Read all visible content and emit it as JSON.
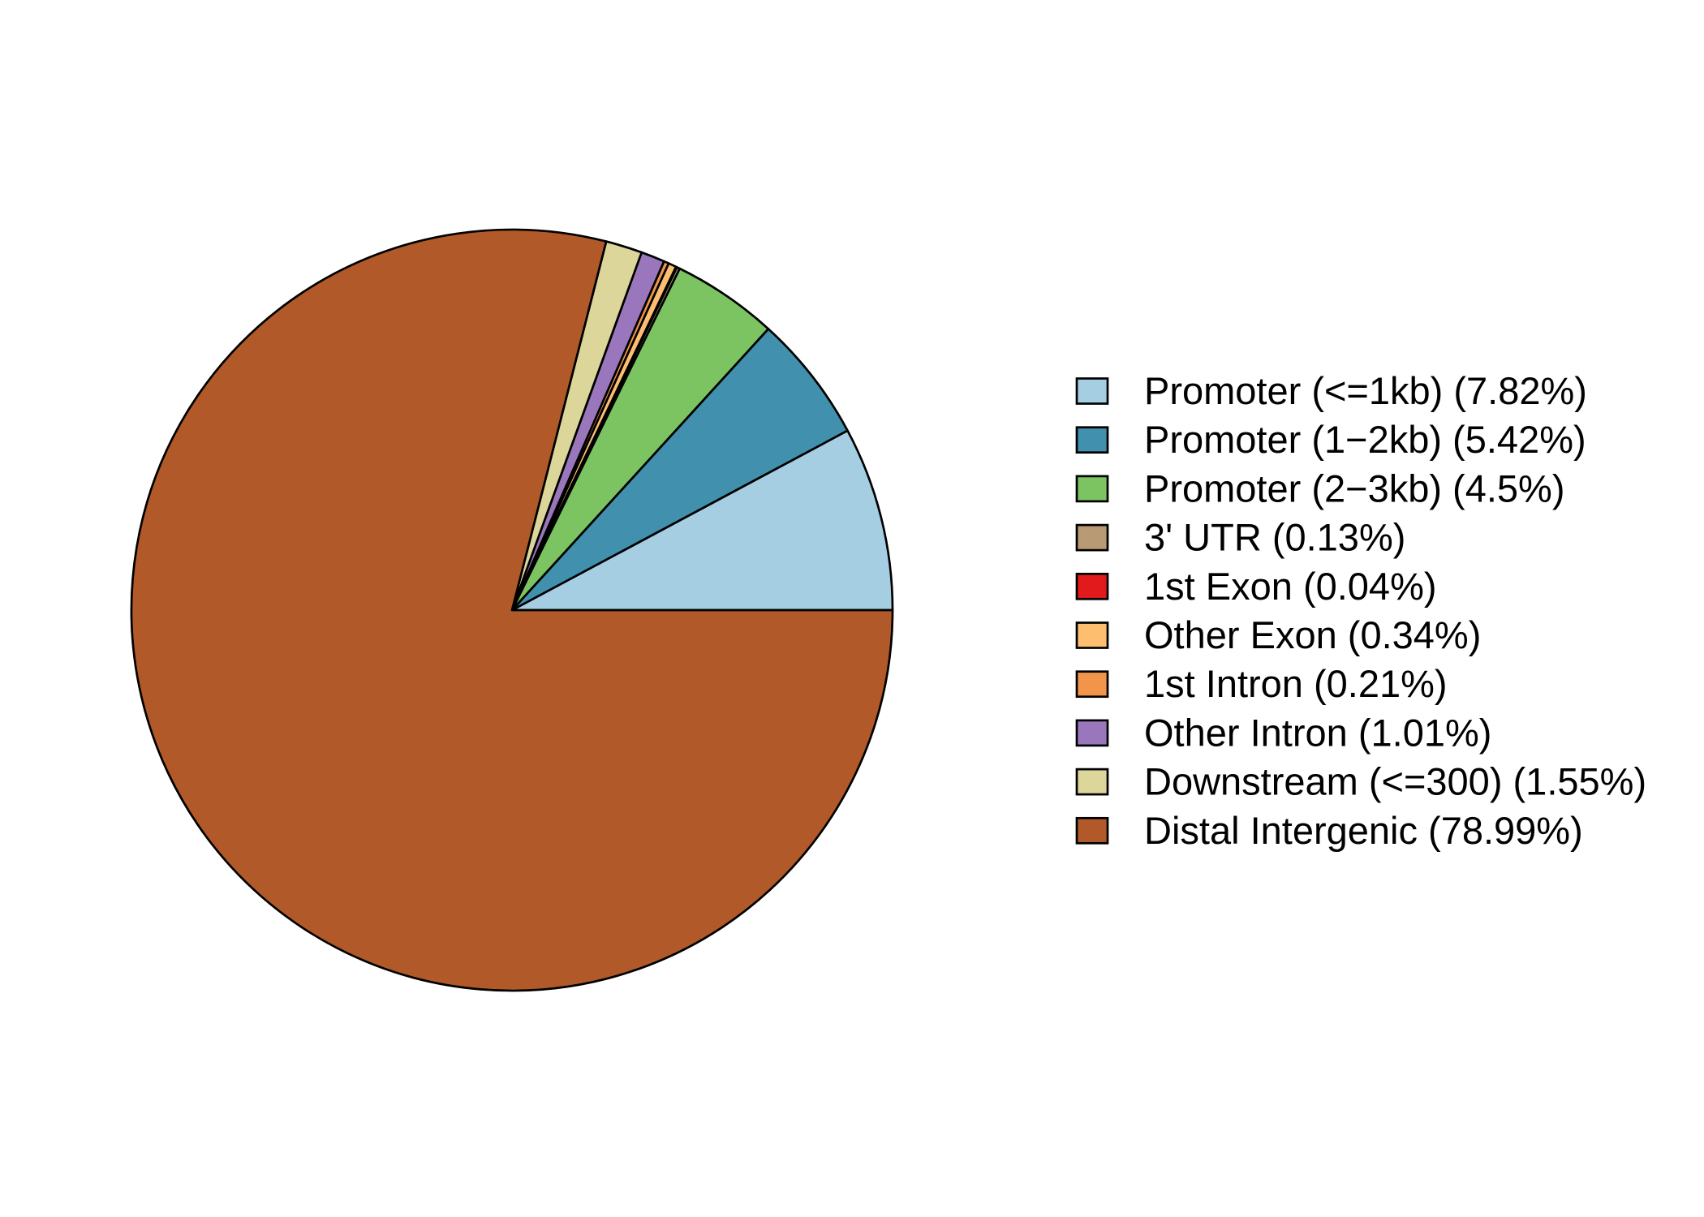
{
  "chart_data": {
    "type": "pie",
    "title": "",
    "start_angle_deg": 0,
    "direction": "counterclockwise",
    "legend_position": "right",
    "slices": [
      {
        "label": "Promoter (<=1kb) (7.82%)",
        "value": 7.82,
        "color": "#A6CEE3"
      },
      {
        "label": "Promoter (1−2kb) (5.42%)",
        "value": 5.42,
        "color": "#4190AD"
      },
      {
        "label": "Promoter (2−3kb) (4.5%)",
        "value": 4.5,
        "color": "#7CC462"
      },
      {
        "label": "3' UTR (0.13%)",
        "value": 0.13,
        "color": "#B89B74"
      },
      {
        "label": "1st Exon (0.04%)",
        "value": 0.04,
        "color": "#E31A1C"
      },
      {
        "label": "Other Exon (0.34%)",
        "value": 0.34,
        "color": "#FDBF6F"
      },
      {
        "label": "1st Intron (0.21%)",
        "value": 0.21,
        "color": "#F0954A"
      },
      {
        "label": "Other Intron (1.01%)",
        "value": 1.01,
        "color": "#9A77BC"
      },
      {
        "label": "Downstream (<=300) (1.55%)",
        "value": 1.55,
        "color": "#DDD69B"
      },
      {
        "label": "Distal Intergenic (78.99%)",
        "value": 78.99,
        "color": "#B15928"
      }
    ]
  }
}
